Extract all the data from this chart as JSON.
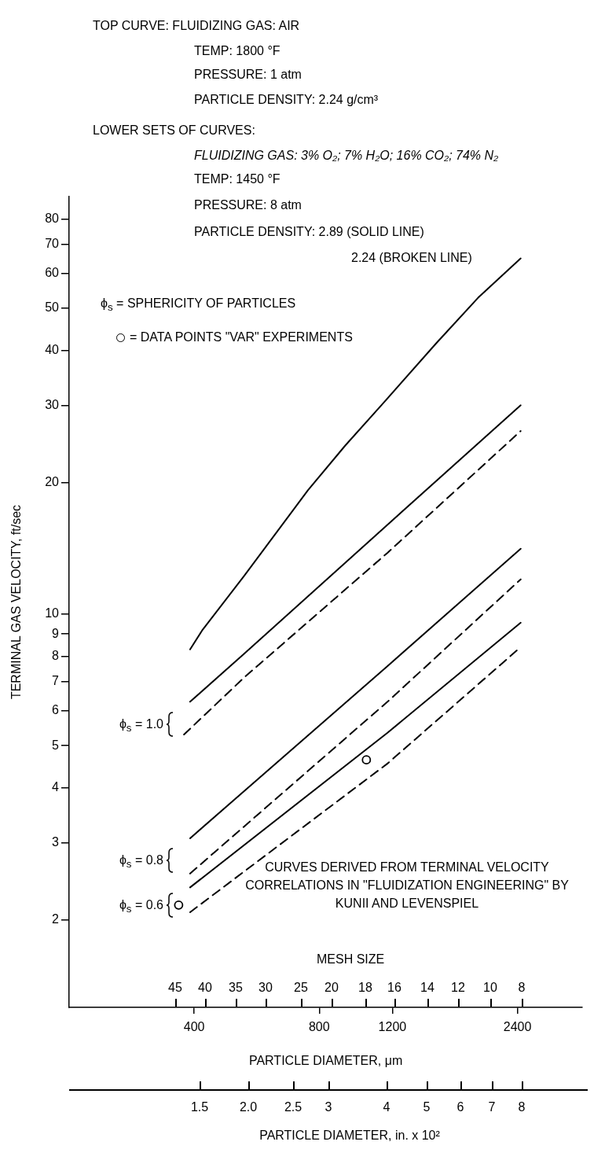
{
  "chart_data": {
    "type": "line",
    "xlabel": "PARTICLE DIAMETER, μm",
    "ylabel": "TERMINAL GAS VELOCITY, ft/sec",
    "log": "xy",
    "legend": "top left",
    "xlim": [
      200,
      3440
    ],
    "xticks": [
      400,
      800,
      1200,
      2400
    ],
    "ylim": [
      1.26,
      90
    ],
    "yticks": [
      2,
      3,
      4,
      5,
      6,
      7,
      8,
      9,
      10,
      20,
      30,
      40,
      50,
      60,
      70,
      80
    ],
    "series": [
      {
        "color": "#000000",
        "line_style": "solid",
        "marker": "none",
        "x": [
          391,
          419,
          527,
          752,
          925,
          1143,
          1527,
          1928,
          2444
        ],
        "values": [
          8.3,
          9.2,
          12.2,
          19.2,
          24.3,
          30.4,
          41.5,
          52.8,
          65
        ]
      },
      {
        "color": "#000000",
        "line_style": "solid",
        "marker": "none",
        "x": [
          391,
          527,
          1168,
          2444
        ],
        "values": [
          6.3,
          8.1,
          16,
          30
        ]
      },
      {
        "color": "#000000",
        "line_style": "dashed",
        "marker": "none",
        "x": [
          378,
          527,
          1168,
          2444
        ],
        "values": [
          5.3,
          7.15,
          13.8,
          26.2
        ]
      },
      {
        "color": "#000000",
        "line_style": "solid",
        "marker": "none",
        "x": [
          391,
          1168,
          2444
        ],
        "values": [
          3.07,
          7.6,
          14.1
        ]
      },
      {
        "color": "#000000",
        "line_style": "dashed",
        "marker": "none",
        "x": [
          391,
          1168,
          2444
        ],
        "values": [
          2.55,
          6.3,
          12
        ]
      },
      {
        "color": "#000000",
        "line_style": "solid",
        "marker": "none",
        "x": [
          391,
          1168,
          2444
        ],
        "values": [
          2.37,
          5.35,
          9.55
        ]
      },
      {
        "color": "#000000",
        "line_style": "dashed",
        "marker": "none",
        "x": [
          391,
          1168,
          2444
        ],
        "values": [
          2.08,
          4.55,
          8.4
        ]
      },
      {
        "type": "scatter",
        "name": "= DATA POINTS \"VAR\" EXPERIMENTS",
        "color": "#000000",
        "marker": "circle",
        "x": [
          367,
          1039
        ],
        "values": [
          2.16,
          4.64
        ]
      }
    ],
    "annotations": [
      "TOP CURVE: FLUIDIZING GAS: AIR",
      "TEMP: 1800 °F",
      "PRESSURE: 1 atm",
      "PARTICLE DENSITY: 2.24 g/cm³",
      "LOWER SETS OF CURVES:",
      "FLUIDIZING GAS: 3% O₂; 7% H₂O; 16% CO₂; 74% N₂",
      "TEMP: 1450 °F",
      "PRESSURE: 8 atm",
      "PARTICLE DENSITY: 2.89 (SOLID LINE)",
      "2.24 (BROKEN LINE)",
      "ϕ$_{s}$ = SPHERICITY OF PARTICLES",
      "ϕ$_{s}$ = 1.0",
      "ϕ$_{s}$ = 0.8",
      "ϕ$_{s}$ = 0.6",
      "CURVES DERIVED FROM TERMINAL VELOCITY CORRELATIONS IN \"FLUIDIZATION ENGINEERING\" BY KUNII AND LEVENSPIEL",
      "MESH SIZE",
      "45 40 35 30 25 20 18 16 14 12 10 8",
      "1.5 2.0 2.5 3 4 5 6 7 8",
      "PARTICLE DIAMETER, in. x 10²"
    ]
  }
}
